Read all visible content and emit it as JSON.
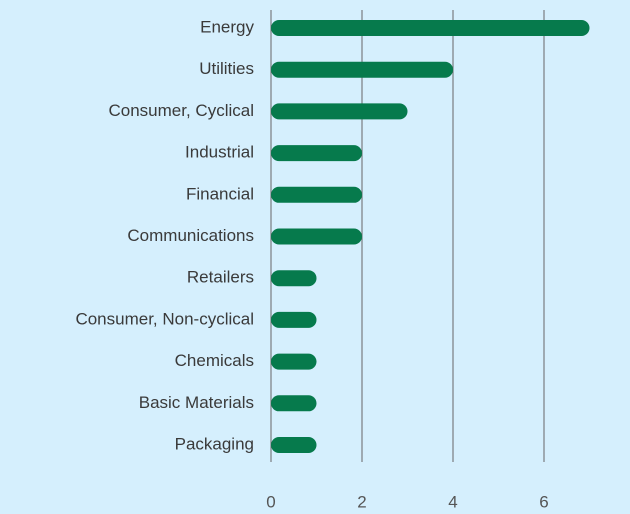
{
  "chart_data": {
    "type": "bar",
    "orientation": "horizontal",
    "categories": [
      "Energy",
      "Utilities",
      "Consumer, Cyclical",
      "Industrial",
      "Financial",
      "Communications",
      "Retailers",
      "Consumer, Non-cyclical",
      "Chemicals",
      "Basic Materials",
      "Packaging"
    ],
    "values": [
      7,
      4,
      3,
      2,
      2,
      2,
      1,
      1,
      1,
      1,
      1
    ],
    "color": "#067a4c",
    "xlim": [
      0,
      8
    ],
    "xticks": [
      0,
      2,
      4,
      6,
      8
    ],
    "grid": true
  }
}
